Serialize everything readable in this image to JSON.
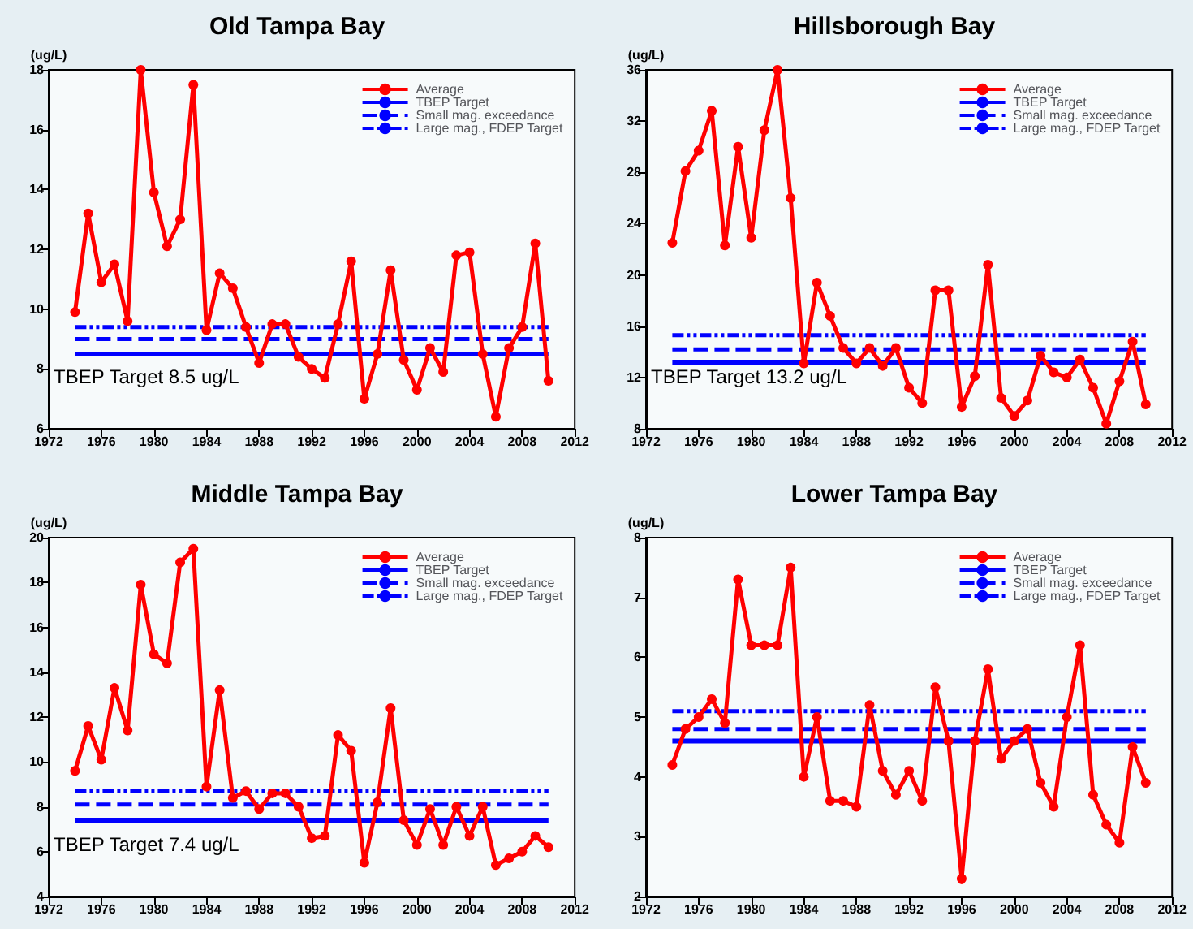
{
  "chart_data": [
    {
      "type": "line",
      "title": "Old Tampa Bay",
      "ylabel": "(ug/L)",
      "x": [
        1974,
        1975,
        1976,
        1977,
        1978,
        1979,
        1980,
        1981,
        1982,
        1983,
        1984,
        1985,
        1986,
        1987,
        1988,
        1989,
        1990,
        1991,
        1992,
        1993,
        1994,
        1995,
        1996,
        1997,
        1998,
        1999,
        2000,
        2001,
        2002,
        2003,
        2004,
        2005,
        2006,
        2007,
        2008,
        2009,
        2010
      ],
      "series": [
        {
          "name": "Average",
          "color": "#ff0000",
          "values": [
            9.9,
            13.2,
            10.9,
            11.5,
            9.6,
            18.0,
            13.9,
            12.1,
            13.0,
            17.5,
            9.3,
            11.2,
            10.7,
            9.4,
            8.2,
            9.5,
            9.5,
            8.4,
            8.0,
            7.7,
            9.5,
            11.6,
            7.0,
            8.5,
            11.3,
            8.3,
            7.3,
            8.7,
            7.9,
            11.8,
            11.9,
            8.5,
            6.4,
            8.7,
            9.4,
            12.2,
            7.6
          ]
        }
      ],
      "marker": "circle",
      "xlim": [
        1972,
        2012
      ],
      "xticks": [
        1972,
        1976,
        1980,
        1984,
        1988,
        1992,
        1996,
        2000,
        2004,
        2008,
        2012
      ],
      "ylim": [
        6,
        18
      ],
      "yticks": [
        6,
        8,
        10,
        12,
        14,
        16,
        18
      ],
      "ref_lines": [
        {
          "axis": "y",
          "value": 8.5,
          "label": "TBEP Target",
          "color": "#0000ff",
          "line_style": "solid"
        },
        {
          "axis": "y",
          "value": 9.0,
          "label": "Small mag. exceedance",
          "color": "#0000ff",
          "line_style": "dashed"
        },
        {
          "axis": "y",
          "value": 9.4,
          "label": "Large mag., FDEP Target",
          "color": "#0000ff",
          "line_style": "dashdot"
        }
      ],
      "annotations": [
        "TBEP Target 8.5 ug/L"
      ],
      "legend": "top right"
    },
    {
      "type": "line",
      "title": "Hillsborough Bay",
      "ylabel": "(ug/L)",
      "x": [
        1974,
        1975,
        1976,
        1977,
        1978,
        1979,
        1980,
        1981,
        1982,
        1983,
        1984,
        1985,
        1986,
        1987,
        1988,
        1989,
        1990,
        1991,
        1992,
        1993,
        1994,
        1995,
        1996,
        1997,
        1998,
        1999,
        2000,
        2001,
        2002,
        2003,
        2004,
        2005,
        2006,
        2007,
        2008,
        2009,
        2010
      ],
      "series": [
        {
          "name": "Average",
          "color": "#ff0000",
          "values": [
            22.5,
            28.1,
            29.7,
            32.8,
            22.3,
            30.0,
            22.9,
            31.3,
            36.0,
            26.0,
            13.1,
            19.4,
            16.8,
            14.3,
            13.1,
            14.3,
            12.9,
            14.3,
            11.2,
            10.0,
            18.8,
            18.8,
            9.7,
            12.1,
            20.8,
            10.4,
            9.0,
            10.2,
            13.7,
            12.4,
            12.0,
            13.4,
            11.2,
            8.4,
            11.7,
            14.8,
            9.9
          ]
        }
      ],
      "marker": "circle",
      "xlim": [
        1972,
        2012
      ],
      "xticks": [
        1972,
        1976,
        1980,
        1984,
        1988,
        1992,
        1996,
        2000,
        2004,
        2008,
        2012
      ],
      "ylim": [
        8,
        36
      ],
      "yticks": [
        8,
        12,
        16,
        20,
        24,
        28,
        32,
        36
      ],
      "ref_lines": [
        {
          "axis": "y",
          "value": 13.2,
          "label": "TBEP Target",
          "color": "#0000ff",
          "line_style": "solid"
        },
        {
          "axis": "y",
          "value": 14.2,
          "label": "Small mag. exceedance",
          "color": "#0000ff",
          "line_style": "dashed"
        },
        {
          "axis": "y",
          "value": 15.3,
          "label": "Large mag., FDEP Target",
          "color": "#0000ff",
          "line_style": "dashdot"
        }
      ],
      "annotations": [
        "TBEP Target 13.2 ug/L"
      ],
      "legend": "top right"
    },
    {
      "type": "line",
      "title": "Middle Tampa Bay",
      "ylabel": "(ug/L)",
      "x": [
        1974,
        1975,
        1976,
        1977,
        1978,
        1979,
        1980,
        1981,
        1982,
        1983,
        1984,
        1985,
        1986,
        1987,
        1988,
        1989,
        1990,
        1991,
        1992,
        1993,
        1994,
        1995,
        1996,
        1997,
        1998,
        1999,
        2000,
        2001,
        2002,
        2003,
        2004,
        2005,
        2006,
        2007,
        2008,
        2009,
        2010
      ],
      "series": [
        {
          "name": "Average",
          "color": "#ff0000",
          "values": [
            9.6,
            11.6,
            10.1,
            13.3,
            11.4,
            17.9,
            14.8,
            14.4,
            18.9,
            19.5,
            8.9,
            13.2,
            8.4,
            8.7,
            7.9,
            8.6,
            8.6,
            8.0,
            6.6,
            6.7,
            11.2,
            10.5,
            5.5,
            8.2,
            12.4,
            7.4,
            6.3,
            7.9,
            6.3,
            8.0,
            6.7,
            8.0,
            5.4,
            5.7,
            6.0,
            6.7,
            6.2
          ]
        }
      ],
      "marker": "circle",
      "xlim": [
        1972,
        2012
      ],
      "xticks": [
        1972,
        1976,
        1980,
        1984,
        1988,
        1992,
        1996,
        2000,
        2004,
        2008,
        2012
      ],
      "ylim": [
        4,
        20
      ],
      "yticks": [
        4,
        6,
        8,
        10,
        12,
        14,
        16,
        18,
        20
      ],
      "ref_lines": [
        {
          "axis": "y",
          "value": 7.4,
          "label": "TBEP Target",
          "color": "#0000ff",
          "line_style": "solid"
        },
        {
          "axis": "y",
          "value": 8.1,
          "label": "Small mag. exceedance",
          "color": "#0000ff",
          "line_style": "dashed"
        },
        {
          "axis": "y",
          "value": 8.7,
          "label": "Large mag., FDEP Target",
          "color": "#0000ff",
          "line_style": "dashdot"
        }
      ],
      "annotations": [
        "TBEP Target 7.4 ug/L"
      ],
      "legend": "top right"
    },
    {
      "type": "line",
      "title": "Lower Tampa Bay",
      "ylabel": "(ug/L)",
      "x": [
        1974,
        1975,
        1976,
        1977,
        1978,
        1979,
        1980,
        1981,
        1982,
        1983,
        1984,
        1985,
        1986,
        1987,
        1988,
        1989,
        1990,
        1991,
        1992,
        1993,
        1994,
        1995,
        1996,
        1997,
        1998,
        1999,
        2000,
        2001,
        2002,
        2003,
        2004,
        2005,
        2006,
        2007,
        2008,
        2009,
        2010
      ],
      "series": [
        {
          "name": "Average",
          "color": "#ff0000",
          "values": [
            4.2,
            4.8,
            5.0,
            5.3,
            4.9,
            7.3,
            6.2,
            6.2,
            6.2,
            7.5,
            4.0,
            5.0,
            3.6,
            3.6,
            3.5,
            5.2,
            4.1,
            3.7,
            4.1,
            3.6,
            5.5,
            4.6,
            2.3,
            4.6,
            5.8,
            4.3,
            4.6,
            4.8,
            3.9,
            3.5,
            5.0,
            6.2,
            3.7,
            3.2,
            2.9,
            4.5,
            3.9
          ]
        }
      ],
      "marker": "circle",
      "xlim": [
        1972,
        2012
      ],
      "xticks": [
        1972,
        1976,
        1980,
        1984,
        1988,
        1992,
        1996,
        2000,
        2004,
        2008,
        2012
      ],
      "ylim": [
        2,
        8
      ],
      "yticks": [
        2,
        3,
        4,
        5,
        6,
        7,
        8
      ],
      "ref_lines": [
        {
          "axis": "y",
          "value": 4.6,
          "label": "TBEP Target",
          "color": "#0000ff",
          "line_style": "solid"
        },
        {
          "axis": "y",
          "value": 4.8,
          "label": "Small mag. exceedance",
          "color": "#0000ff",
          "line_style": "dashed"
        },
        {
          "axis": "y",
          "value": 5.1,
          "label": "Large mag., FDEP Target",
          "color": "#0000ff",
          "line_style": "dashdot"
        }
      ],
      "legend": "top right"
    }
  ]
}
